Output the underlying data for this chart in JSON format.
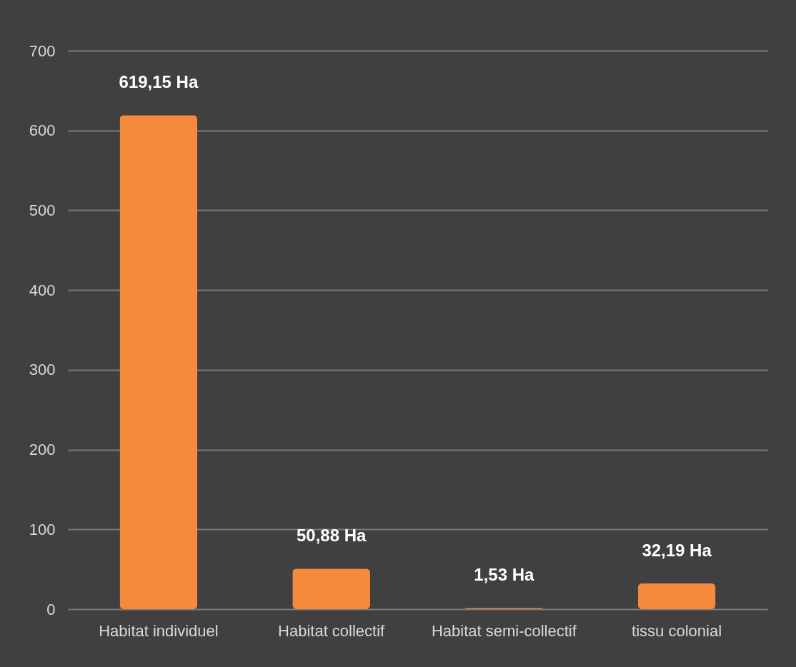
{
  "chart_data": {
    "type": "bar",
    "categories": [
      "Habitat individuel",
      "Habitat collectif",
      "Habitat semi-collectif",
      "tissu colonial"
    ],
    "values": [
      619.15,
      50.88,
      1.53,
      32.19
    ],
    "value_labels": [
      "619,15 Ha",
      "50,88 Ha",
      "1,53 Ha",
      "32,19 Ha"
    ],
    "color": "#f58a3c",
    "ylim": [
      0,
      700
    ],
    "yticks": [
      0,
      100,
      200,
      300,
      400,
      500,
      600,
      700
    ],
    "grid": "y"
  }
}
